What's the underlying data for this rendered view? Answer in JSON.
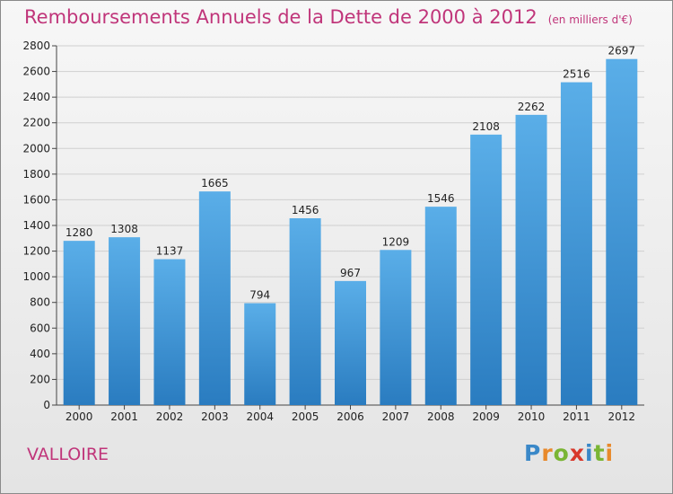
{
  "chart_data": {
    "type": "bar",
    "title": "Remboursements Annuels de la Dette de 2000 à 2012",
    "unit": "(en milliers d'€)",
    "categories": [
      "2000",
      "2001",
      "2002",
      "2003",
      "2004",
      "2005",
      "2006",
      "2007",
      "2008",
      "2009",
      "2010",
      "2011",
      "2012"
    ],
    "values": [
      1280,
      1308,
      1137,
      1665,
      794,
      1456,
      967,
      1209,
      1546,
      2108,
      2262,
      2516,
      2697
    ],
    "ylim": [
      0,
      2800
    ],
    "yticks": [
      0,
      200,
      400,
      600,
      800,
      1000,
      1200,
      1400,
      1600,
      1800,
      2000,
      2200,
      2400,
      2600,
      2800
    ],
    "grid": true,
    "colors": {
      "bar_top": "#5aaee8",
      "bar_bottom": "#2a7cc0",
      "title": "#c0357a"
    }
  },
  "commune": "VALLOIRE",
  "logo": {
    "text": "Proxiti"
  }
}
